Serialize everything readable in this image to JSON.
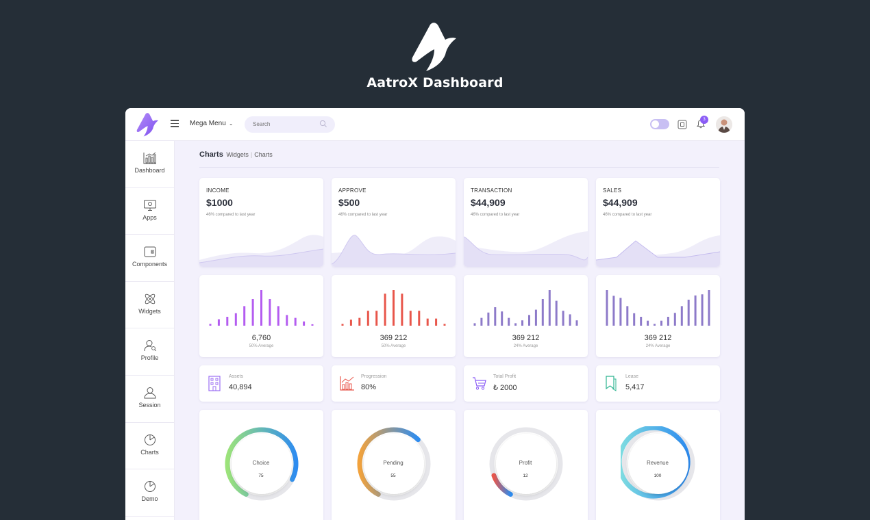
{
  "brand": {
    "title": "AatroX Dashboard",
    "logo": "aatrox-logo"
  },
  "topbar": {
    "mega_menu": "Mega Menu",
    "search_placeholder": "Search",
    "notification_count": "3",
    "icons": [
      "hamburger-icon",
      "chevron-down-icon",
      "search-icon",
      "theme-toggle",
      "fullscreen-icon",
      "bell-icon",
      "avatar"
    ]
  },
  "sidebar": {
    "items": [
      {
        "label": "Dashboard",
        "icon": "bar-chart-icon"
      },
      {
        "label": "Apps",
        "icon": "monitor-icon"
      },
      {
        "label": "Components",
        "icon": "wallet-icon"
      },
      {
        "label": "Widgets",
        "icon": "atom-icon"
      },
      {
        "label": "Profile",
        "icon": "user-search-icon"
      },
      {
        "label": "Session",
        "icon": "user-icon"
      },
      {
        "label": "Charts",
        "icon": "pie-chart-icon"
      },
      {
        "label": "Demo",
        "icon": "pie-chart-icon"
      }
    ]
  },
  "breadcrumb": {
    "title": "Charts",
    "parent": "Widgets",
    "current": "Charts"
  },
  "stats": [
    {
      "label": "INCOME",
      "value": "$1000",
      "sub": "46% compared to last year"
    },
    {
      "label": "APPROVE",
      "value": "$500",
      "sub": "46% compared to last year"
    },
    {
      "label": "TRANSACTION",
      "value": "$44,909",
      "sub": "46% compared to last year"
    },
    {
      "label": "SALES",
      "value": "$44,909",
      "sub": "46% compared to last year"
    }
  ],
  "bar_cards": [
    {
      "value": "6,760",
      "sub": "50% Average",
      "color": "#b45cf0",
      "bars": [
        0.05,
        0.18,
        0.25,
        0.35,
        0.55,
        0.75,
        1.0,
        0.75,
        0.55,
        0.3,
        0.22,
        0.12,
        0.04
      ]
    },
    {
      "value": "369 212",
      "sub": "50% Average",
      "color": "#e8564b",
      "bars": [
        0.05,
        0.17,
        0.22,
        0.42,
        0.42,
        0.9,
        1.0,
        0.9,
        0.42,
        0.42,
        0.2,
        0.2,
        0.05
      ]
    },
    {
      "value": "369 212",
      "sub": "24% Average",
      "color": "#8d7ac9",
      "bars": [
        0.07,
        0.22,
        0.37,
        0.52,
        0.4,
        0.22,
        0.07,
        0.15,
        0.3,
        0.45,
        0.75,
        1.0,
        0.7,
        0.42,
        0.32,
        0.15
      ]
    },
    {
      "value": "369 212",
      "sub": "24% Average",
      "color": "#8d7ac9",
      "bars": [
        1.0,
        0.84,
        0.78,
        0.55,
        0.35,
        0.25,
        0.14,
        0.05,
        0.14,
        0.25,
        0.36,
        0.55,
        0.73,
        0.85,
        0.88,
        1.0
      ]
    }
  ],
  "mini_cards": [
    {
      "label": "Assets",
      "value": "40,894",
      "icon": "building-icon",
      "color": "#9b6ef3"
    },
    {
      "label": "Progression",
      "value": "80%",
      "icon": "chart-growth-icon",
      "color": "#e8564b"
    },
    {
      "label": "Total Profit",
      "value": "₺ 2000",
      "icon": "cart-icon",
      "color": "#8b5cf6"
    },
    {
      "label": "Lease",
      "value": "5,417",
      "icon": "bookmark-icon",
      "color": "#2fb591"
    }
  ],
  "gauges": [
    {
      "label": "Choice",
      "value": "75",
      "progress": 0.75,
      "colors": [
        "#9ce37a",
        "#2d8cf0"
      ]
    },
    {
      "label": "Pending",
      "value": "55",
      "progress": 0.55,
      "colors": [
        "#f2a23c",
        "#2d8cf0"
      ]
    },
    {
      "label": "Profit",
      "value": "12",
      "progress": 0.12,
      "colors": [
        "#e8564b",
        "#2d8cf0"
      ]
    },
    {
      "label": "Revenue",
      "value": "100",
      "progress": 1.0,
      "colors": [
        "#7fdde0",
        "#2d8cf0"
      ]
    }
  ]
}
